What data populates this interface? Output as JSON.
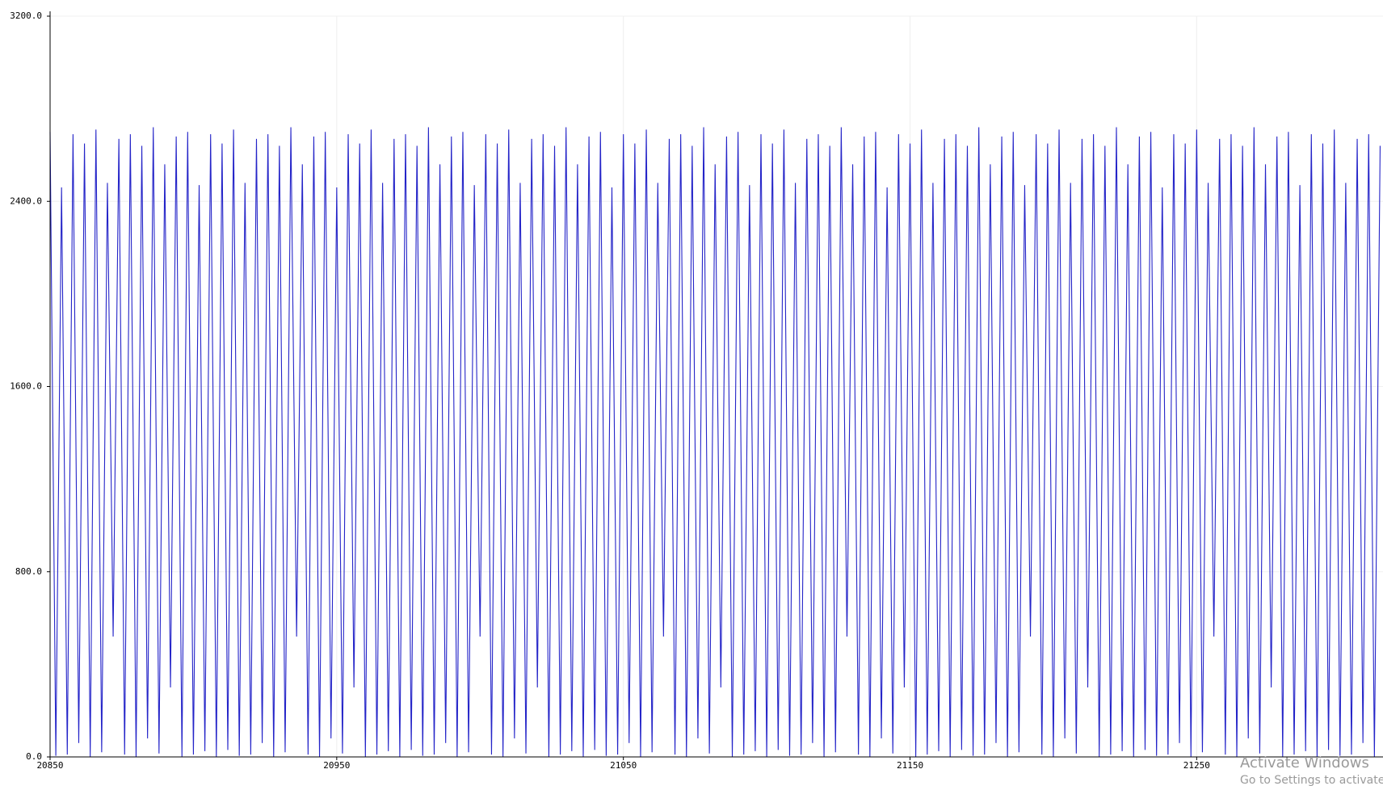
{
  "chart_data": {
    "type": "line",
    "color": "#2424c8",
    "x": [
      20850,
      20852,
      20854,
      20856,
      20858,
      20860,
      20862,
      20864,
      20866,
      20868,
      20870,
      20872,
      20874,
      20876,
      20878,
      20880,
      20882,
      20884,
      20886,
      20888,
      20890,
      20892,
      20894,
      20896,
      20898,
      20900,
      20902,
      20904,
      20906,
      20908,
      20910,
      20912,
      20914,
      20916,
      20918,
      20920,
      20922,
      20924,
      20926,
      20928,
      20930,
      20932,
      20934,
      20936,
      20938,
      20940,
      20942,
      20944,
      20946,
      20948,
      20950,
      20952,
      20954,
      20956,
      20958,
      20960,
      20962,
      20964,
      20966,
      20968,
      20970,
      20972,
      20974,
      20976,
      20978,
      20980,
      20982,
      20984,
      20986,
      20988,
      20990,
      20992,
      20994,
      20996,
      20998,
      21000,
      21002,
      21004,
      21006,
      21008,
      21010,
      21012,
      21014,
      21016,
      21018,
      21020,
      21022,
      21024,
      21026,
      21028,
      21030,
      21032,
      21034,
      21036,
      21038,
      21040,
      21042,
      21044,
      21046,
      21048,
      21050,
      21052,
      21054,
      21056,
      21058,
      21060,
      21062,
      21064,
      21066,
      21068,
      21070,
      21072,
      21074,
      21076,
      21078,
      21080,
      21082,
      21084,
      21086,
      21088,
      21090,
      21092,
      21094,
      21096,
      21098,
      21100,
      21102,
      21104,
      21106,
      21108,
      21110,
      21112,
      21114,
      21116,
      21118,
      21120,
      21122,
      21124,
      21126,
      21128,
      21130,
      21132,
      21134,
      21136,
      21138,
      21140,
      21142,
      21144,
      21146,
      21148,
      21150,
      21152,
      21154,
      21156,
      21158,
      21160,
      21162,
      21164,
      21166,
      21168,
      21170,
      21172,
      21174,
      21176,
      21178,
      21180,
      21182,
      21184,
      21186,
      21188,
      21190,
      21192,
      21194,
      21196,
      21198,
      21200,
      21202,
      21204,
      21206,
      21208,
      21210,
      21212,
      21214,
      21216,
      21218,
      21220,
      21222,
      21224,
      21226,
      21228,
      21230,
      21232,
      21234,
      21236,
      21238,
      21240,
      21242,
      21244,
      21246,
      21248,
      21250,
      21252,
      21254,
      21256,
      21258,
      21260,
      21262,
      21264,
      21266,
      21268,
      21270,
      21272,
      21274,
      21276,
      21278,
      21280,
      21282,
      21284,
      21286,
      21288,
      21290,
      21292,
      21294,
      21296,
      21298,
      21300,
      21302,
      21304,
      21306,
      21308,
      21310,
      21312,
      21314
    ],
    "values": [
      2700,
      5,
      2460,
      10,
      2690,
      60,
      2650,
      0,
      2710,
      20,
      2480,
      520,
      2670,
      10,
      2690,
      0,
      2640,
      80,
      2720,
      15,
      2560,
      300,
      2680,
      0,
      2700,
      10,
      2470,
      25,
      2690,
      0,
      2650,
      30,
      2710,
      5,
      2480,
      10,
      2670,
      60,
      2690,
      0,
      2640,
      20,
      2720,
      520,
      2560,
      10,
      2680,
      0,
      2700,
      80,
      2460,
      15,
      2690,
      300,
      2650,
      0,
      2710,
      10,
      2480,
      25,
      2670,
      0,
      2690,
      30,
      2640,
      5,
      2720,
      10,
      2560,
      60,
      2680,
      0,
      2700,
      20,
      2470,
      520,
      2690,
      10,
      2650,
      0,
      2710,
      80,
      2480,
      15,
      2670,
      300,
      2690,
      0,
      2640,
      10,
      2720,
      25,
      2560,
      0,
      2680,
      30,
      2700,
      5,
      2460,
      10,
      2690,
      60,
      2650,
      0,
      2710,
      20,
      2480,
      520,
      2670,
      10,
      2690,
      0,
      2640,
      80,
      2720,
      15,
      2560,
      300,
      2680,
      0,
      2700,
      10,
      2470,
      25,
      2690,
      0,
      2650,
      30,
      2710,
      5,
      2480,
      10,
      2670,
      60,
      2690,
      0,
      2640,
      20,
      2720,
      520,
      2560,
      10,
      2680,
      0,
      2700,
      80,
      2460,
      15,
      2690,
      300,
      2650,
      0,
      2710,
      10,
      2480,
      25,
      2670,
      0,
      2690,
      30,
      2640,
      5,
      2720,
      10,
      2560,
      60,
      2680,
      0,
      2700,
      20,
      2470,
      520,
      2690,
      10,
      2650,
      0,
      2710,
      80,
      2480,
      15,
      2670,
      300,
      2690,
      0,
      2640,
      10,
      2720,
      25,
      2560,
      0,
      2680,
      30,
      2700,
      5,
      2460,
      10,
      2690,
      60,
      2650,
      0,
      2710,
      20,
      2480,
      520,
      2670,
      10,
      2690,
      0,
      2640,
      80,
      2720,
      15,
      2560,
      300,
      2680,
      0,
      2700,
      10,
      2470,
      25,
      2690,
      0,
      2650,
      30,
      2710,
      5,
      2480,
      10,
      2670,
      60,
      2690,
      0,
      2640
    ],
    "xlim": [
      20850,
      21315
    ],
    "xticks": [
      20850,
      20950,
      21050,
      21150,
      21250
    ],
    "ylim": [
      0,
      3200
    ],
    "yticks": [
      {
        "value": 0,
        "label": "0.0"
      },
      {
        "value": 800,
        "label": "800.0"
      },
      {
        "value": 1600,
        "label": "1600.0"
      },
      {
        "value": 2400,
        "label": "2400.0"
      },
      {
        "value": 3200,
        "label": "3200.0"
      }
    ],
    "grid": true
  },
  "watermark": {
    "title": "Activate Windows",
    "subtitle": "Go to Settings to activate W"
  }
}
